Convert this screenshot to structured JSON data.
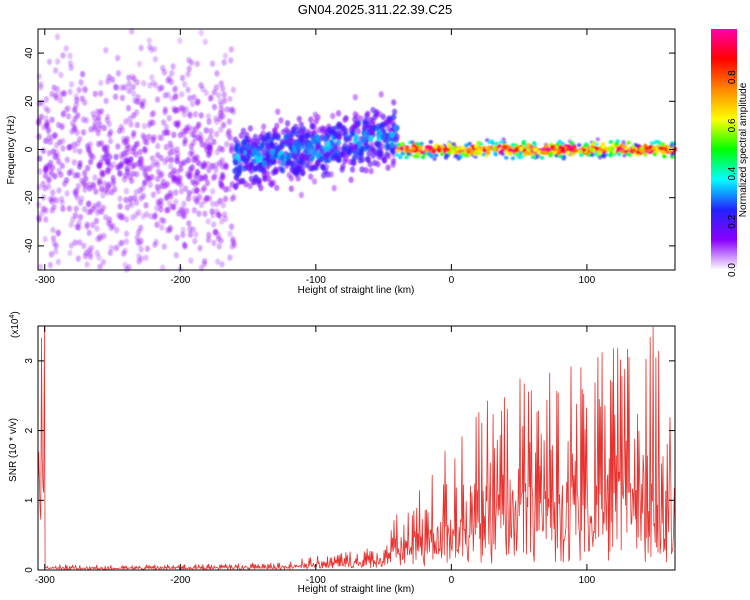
{
  "title": "GN04.2025.311.22.39.C25",
  "chart_data": [
    {
      "type": "heatmap",
      "xlabel": "Height of straight line (km)",
      "ylabel": "Frequency (Hz)",
      "xlim": [
        -305,
        165
      ],
      "ylim": [
        -50,
        50
      ],
      "xticks": [
        "-300",
        "-200",
        "-100",
        "0",
        "100"
      ],
      "xtick_values": [
        -300,
        -200,
        -100,
        0,
        100
      ],
      "yticks": [
        "-40",
        "-20",
        "0",
        "20",
        "40"
      ],
      "ytick_values": [
        -40,
        -20,
        0,
        20,
        40
      ],
      "colorbar": {
        "label": "Normalized spectral amplitude",
        "ticks": [
          "0.0",
          "0.2",
          "0.4",
          "0.6",
          "0.8"
        ],
        "tick_values": [
          0.0,
          0.2,
          0.4,
          0.6,
          0.8
        ],
        "range": [
          0,
          1
        ],
        "colormap": [
          "#ffffff",
          "#8a00ff",
          "#2222ff",
          "#00ffff",
          "#00ff00",
          "#ffff00",
          "#ff8800",
          "#ff0000",
          "#ff00aa"
        ]
      },
      "regions": [
        {
          "x_range": [
            -305,
            -160
          ],
          "freq_center": -5,
          "freq_spread": 45,
          "amplitude": 0.12
        },
        {
          "x_range": [
            -160,
            -40
          ],
          "freq_center": 2,
          "freq_spread": 12,
          "amplitude": 0.3
        },
        {
          "x_range": [
            -40,
            165
          ],
          "freq_center": 0,
          "freq_spread": 3,
          "amplitude": 0.8
        }
      ]
    },
    {
      "type": "line",
      "xlabel": "Height of straight line (km)",
      "ylabel": "SNR (10 * v/v)",
      "yscale_label": "(x10",
      "yscale_exp": "4",
      "xlim": [
        -305,
        165
      ],
      "ylim": [
        0,
        35000
      ],
      "xticks": [
        "-300",
        "-200",
        "-100",
        "0",
        "100"
      ],
      "xtick_values": [
        -300,
        -200,
        -100,
        0,
        100
      ],
      "yticks": [
        "0",
        "1",
        "2",
        "3"
      ],
      "ytick_values": [
        0,
        10000,
        20000,
        30000
      ],
      "color": "#e8322e",
      "series": [
        {
          "x": [
            -300,
            -250,
            -200,
            -150,
            -120,
            -100,
            -80,
            -60,
            -50,
            -40,
            -30,
            -20,
            -10,
            0,
            10,
            20,
            30,
            40,
            50,
            60,
            70,
            80,
            90,
            100,
            110,
            120,
            130,
            140,
            150,
            160,
            165
          ],
          "y": [
            500,
            400,
            500,
            600,
            800,
            1200,
            1600,
            2000,
            2500,
            5000,
            7000,
            8000,
            10000,
            13000,
            14000,
            15000,
            16000,
            17000,
            18000,
            19000,
            19000,
            19000,
            20000,
            20000,
            20000,
            21000,
            22000,
            22000,
            23000,
            23000,
            22000
          ]
        }
      ]
    }
  ]
}
